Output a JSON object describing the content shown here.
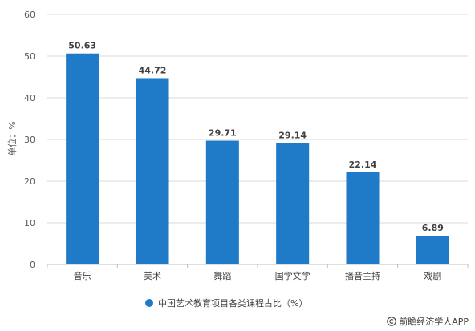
{
  "chart_data": {
    "type": "bar",
    "categories": [
      "音乐",
      "美术",
      "舞蹈",
      "国学文学",
      "播音主持",
      "戏剧"
    ],
    "series": [
      {
        "name": "中国艺术教育项目各类课程占比（%）",
        "values": [
          50.63,
          44.72,
          29.71,
          29.14,
          22.14,
          6.89
        ]
      }
    ],
    "ylabel": "单位：%",
    "xlabel": "",
    "ylim": [
      0,
      60
    ],
    "yticks": [
      "0",
      "10",
      "20",
      "30",
      "40",
      "50",
      "60"
    ],
    "data_labels": [
      "50.63",
      "44.72",
      "29.71",
      "29.14",
      "22.14",
      "6.89"
    ],
    "grid": true,
    "legend_position": "bottom",
    "bar_color": "#1f7bc8"
  },
  "source": {
    "text": "前瞻经济学人APP",
    "icon": "copyright-icon"
  }
}
